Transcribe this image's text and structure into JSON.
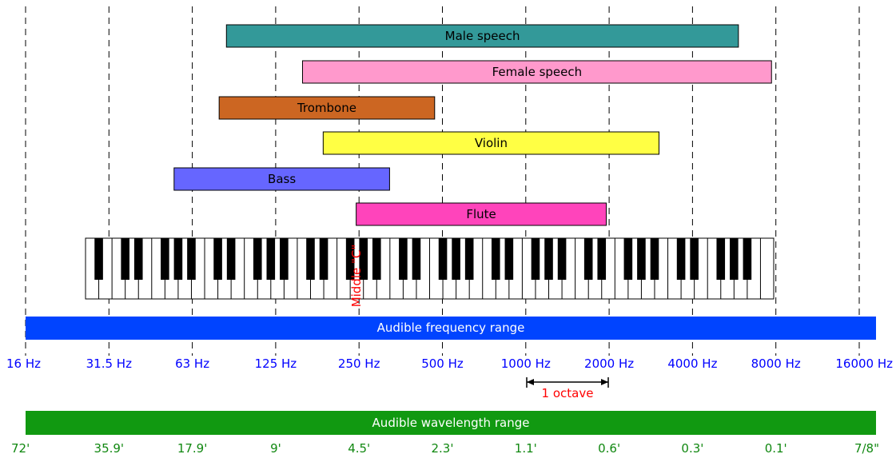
{
  "instruments": [
    {
      "label": "Male speech",
      "low_hz": 85,
      "high_hz": 6000,
      "color": "#339999"
    },
    {
      "label": "Female speech",
      "low_hz": 160,
      "high_hz": 7900,
      "color": "#ff99cc"
    },
    {
      "label": "Trombone",
      "low_hz": 80,
      "high_hz": 480,
      "color": "#cc6622"
    },
    {
      "label": "Violin",
      "low_hz": 190,
      "high_hz": 3100,
      "color": "#ffff44"
    },
    {
      "label": "Bass",
      "low_hz": 55,
      "high_hz": 330,
      "color": "#6666ff"
    },
    {
      "label": "Flute",
      "low_hz": 250,
      "high_hz": 2000,
      "color": "#ff44bb"
    }
  ],
  "middle_c_label": "Middle \"C\"",
  "audible_frequency": {
    "label": "Audible frequency range",
    "color": "#0044ff"
  },
  "frequency_ticks": [
    "16 Hz",
    "31.5 Hz",
    "63 Hz",
    "125 Hz",
    "250 Hz",
    "500 Hz",
    "1000 Hz",
    "2000 Hz",
    "4000 Hz",
    "8000 Hz",
    "16000 Hz"
  ],
  "octave_label": "1 octave",
  "audible_wavelength": {
    "label": "Audible wavelength range",
    "color": "#119911"
  },
  "wavelength_ticks": [
    "72'",
    "35.9'",
    "17.9'",
    "9'",
    "4.5'",
    "2.3'",
    "1.1'",
    "0.6'",
    "0.3'",
    "0.1'",
    "7/8\""
  ],
  "colors": {
    "tick_text": "#0000ff",
    "wavelength_text": "#118811",
    "annotation": "#ff0000"
  }
}
